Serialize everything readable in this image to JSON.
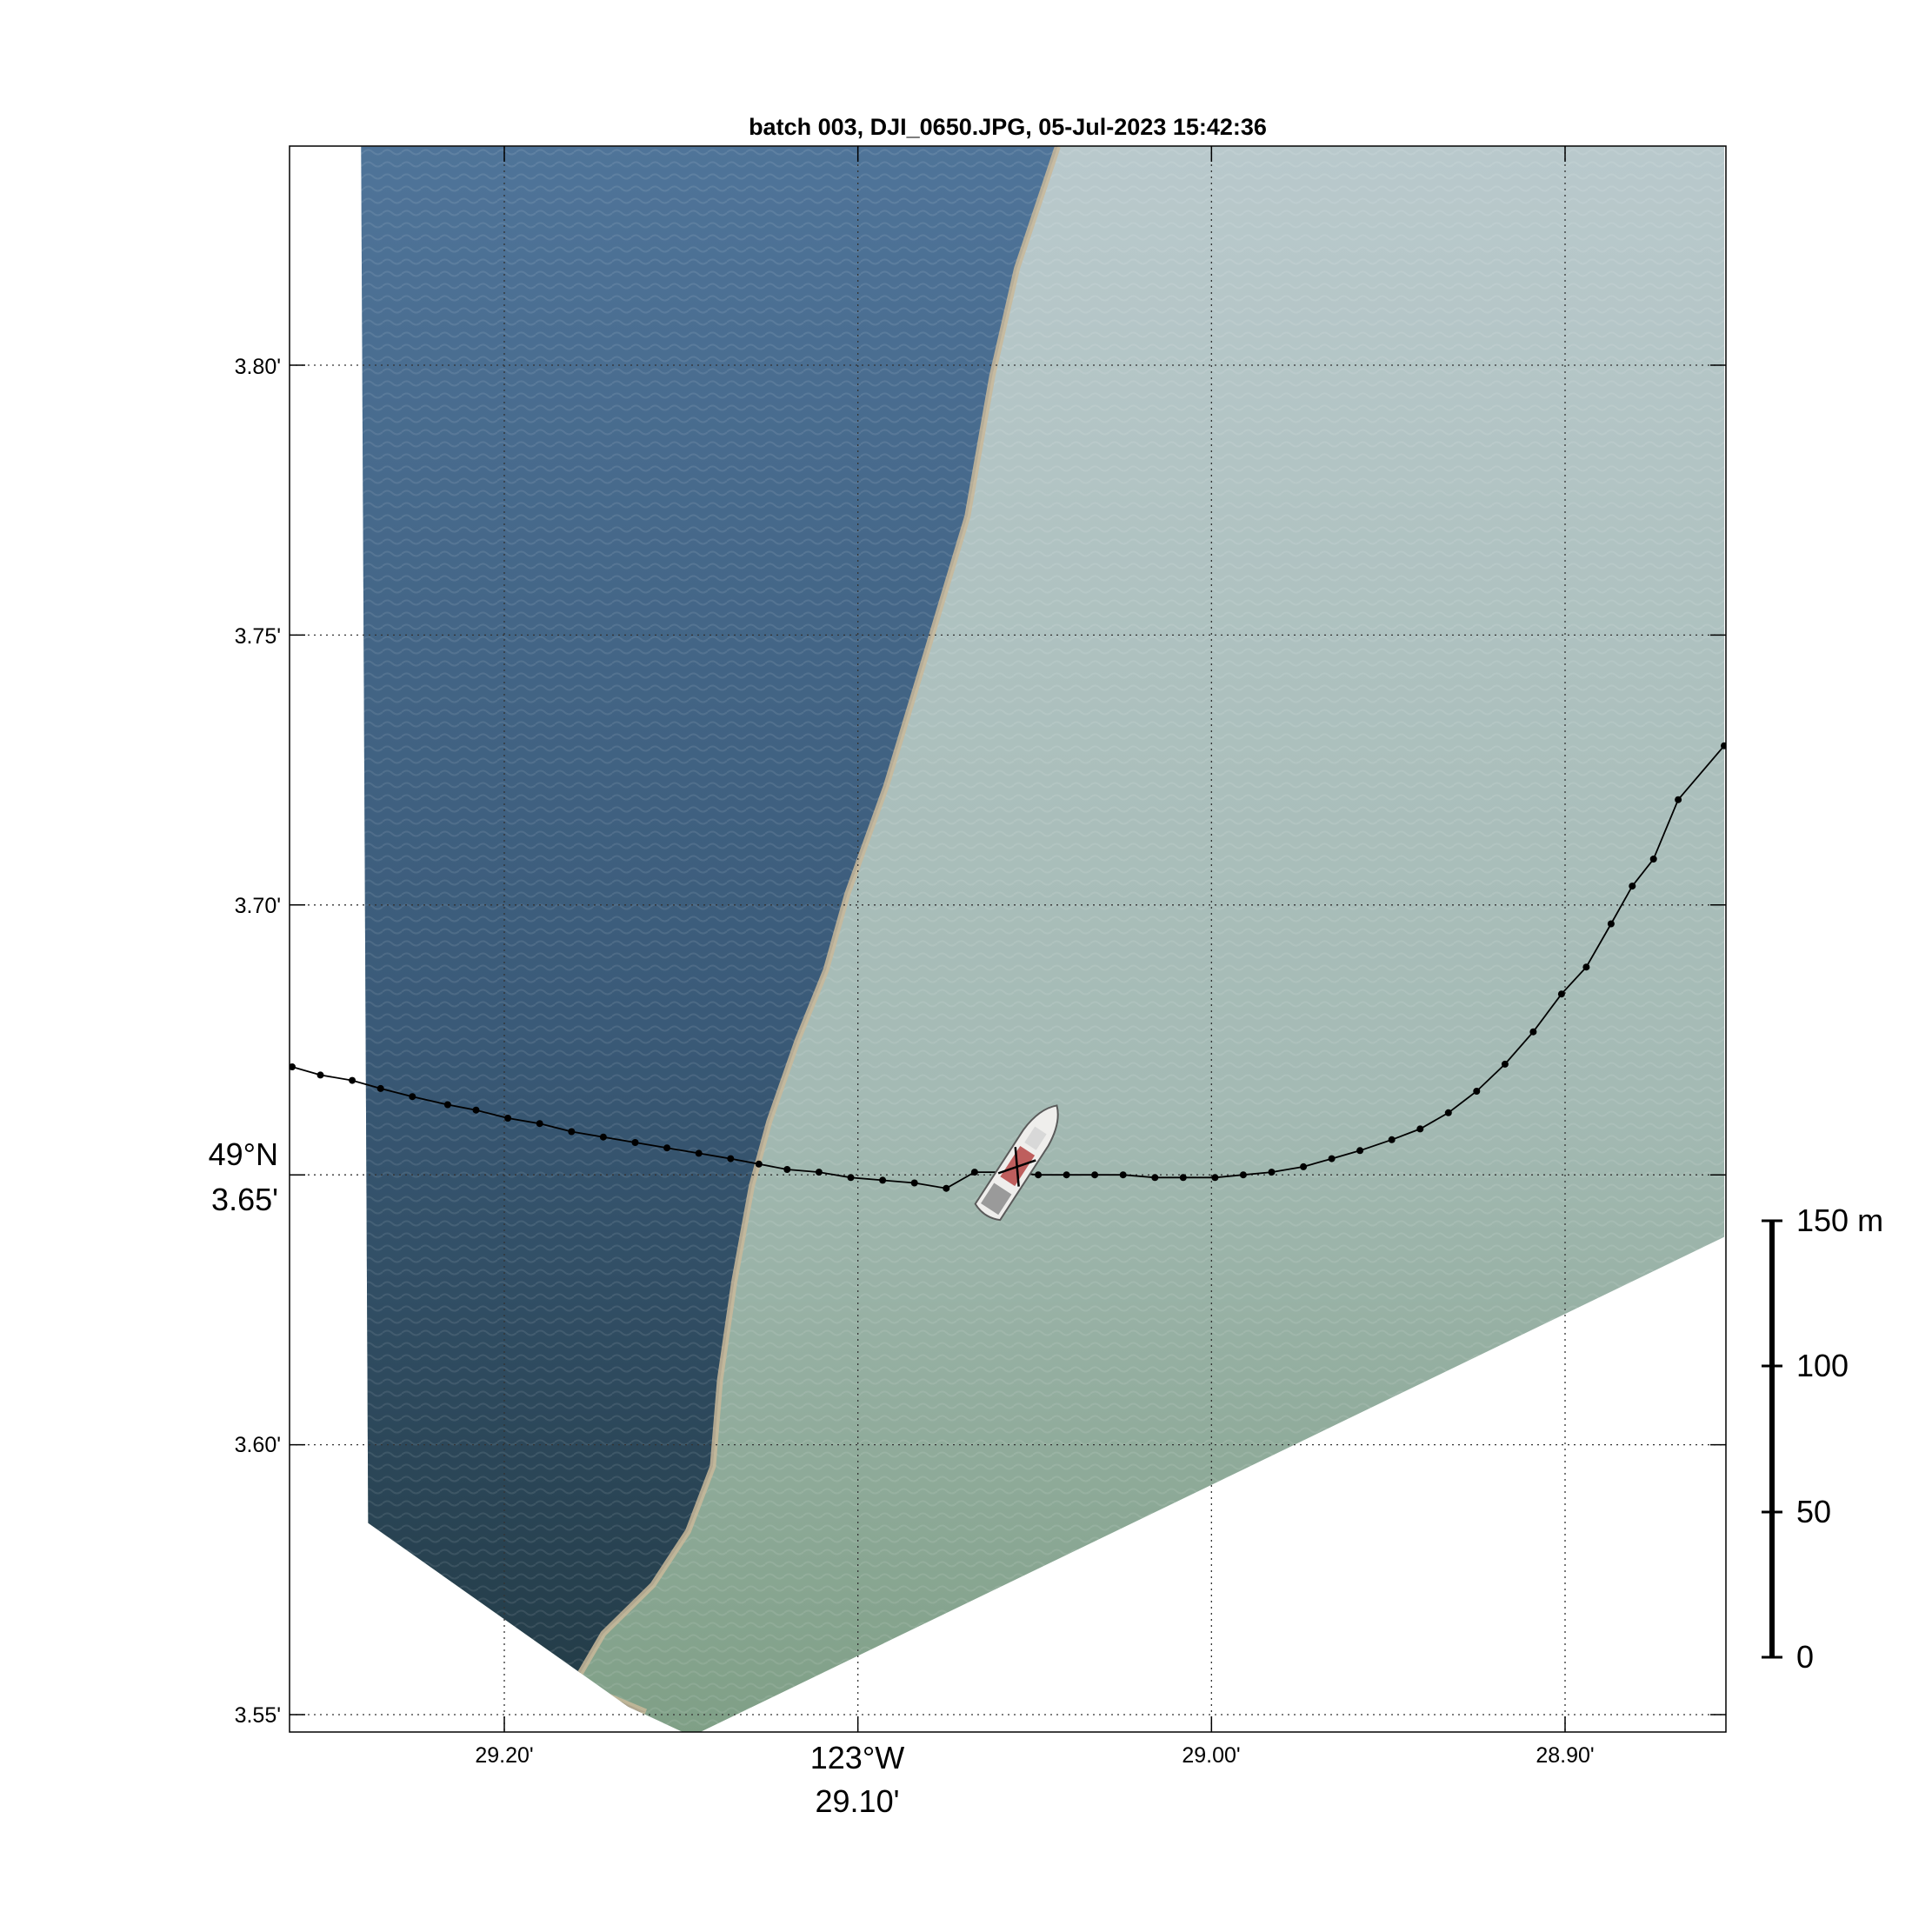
{
  "title": "batch 003, DJI_0650.JPG, 05-Jul-2023 15:42:36",
  "colors": {
    "deep_water_top": "#4f7499",
    "deep_water_bottom": "#223a44",
    "turbid_water_top": "#b9c9cc",
    "turbid_water_bottom": "#7f9f86",
    "foam_front": "#c9b89a",
    "track": "#000000",
    "ship_hull": "#efeeec",
    "ship_accent": "#b23a3a"
  },
  "map": {
    "lat_ticks": [
      {
        "value": 3.8,
        "label": "3.80'"
      },
      {
        "value": 3.75,
        "label": "3.75'"
      },
      {
        "value": 3.7,
        "label": "3.70'"
      },
      {
        "value": 3.65,
        "label_deg": "49°N",
        "label": "3.65'"
      },
      {
        "value": 3.6,
        "label": "3.60'"
      },
      {
        "value": 3.55,
        "label": "3.55'"
      }
    ],
    "lon_ticks": [
      {
        "value": 29.2,
        "label": "29.20'"
      },
      {
        "value": 29.1,
        "label_deg": "123°W",
        "label": "29.10'"
      },
      {
        "value": 29.0,
        "label": "29.00'"
      },
      {
        "value": 28.9,
        "label": "28.90'"
      }
    ],
    "lon_range": [
      29.26,
      28.855
    ],
    "lat_range": [
      3.546,
      3.8405
    ],
    "grid": "dotted",
    "image_footprint": [
      [
        29.2405,
        3.8405
      ],
      [
        28.855,
        3.8405
      ],
      [
        28.855,
        3.6385
      ],
      [
        29.147,
        3.546
      ],
      [
        29.165,
        3.5515
      ],
      [
        29.2385,
        3.5855
      ]
    ],
    "front_line": [
      [
        29.0435,
        3.8405
      ],
      [
        29.055,
        3.818
      ],
      [
        29.062,
        3.798
      ],
      [
        29.069,
        3.772
      ],
      [
        29.08,
        3.748
      ],
      [
        29.092,
        3.722
      ],
      [
        29.103,
        3.702
      ],
      [
        29.109,
        3.688
      ],
      [
        29.117,
        3.675
      ],
      [
        29.125,
        3.66
      ],
      [
        29.13,
        3.648
      ],
      [
        29.135,
        3.63
      ],
      [
        29.139,
        3.612
      ],
      [
        29.141,
        3.596
      ],
      [
        29.148,
        3.584
      ],
      [
        29.158,
        3.574
      ],
      [
        29.172,
        3.565
      ],
      [
        29.18,
        3.556
      ],
      [
        29.16,
        3.5505
      ]
    ],
    "ship_track": [
      [
        29.26,
        3.67
      ],
      [
        29.252,
        3.6685
      ],
      [
        29.243,
        3.6675
      ],
      [
        29.235,
        3.666
      ],
      [
        29.226,
        3.6645
      ],
      [
        29.216,
        3.663
      ],
      [
        29.208,
        3.662
      ],
      [
        29.199,
        3.6605
      ],
      [
        29.19,
        3.6595
      ],
      [
        29.181,
        3.658
      ],
      [
        29.172,
        3.657
      ],
      [
        29.163,
        3.656
      ],
      [
        29.154,
        3.655
      ],
      [
        29.145,
        3.654
      ],
      [
        29.136,
        3.653
      ],
      [
        29.128,
        3.652
      ],
      [
        29.12,
        3.651
      ],
      [
        29.111,
        3.6505
      ],
      [
        29.102,
        3.6495
      ],
      [
        29.093,
        3.649
      ],
      [
        29.084,
        3.6485
      ],
      [
        29.075,
        3.6475
      ],
      [
        29.067,
        3.6505
      ],
      [
        29.058,
        3.6505
      ],
      [
        29.049,
        3.65
      ],
      [
        29.041,
        3.65
      ],
      [
        29.033,
        3.65
      ],
      [
        29.025,
        3.65
      ],
      [
        29.016,
        3.6495
      ],
      [
        29.008,
        3.6495
      ],
      [
        28.999,
        3.6495
      ],
      [
        28.991,
        3.65
      ],
      [
        28.983,
        3.6505
      ],
      [
        28.974,
        3.6515
      ],
      [
        28.966,
        3.653
      ],
      [
        28.958,
        3.6545
      ],
      [
        28.949,
        3.6565
      ],
      [
        28.941,
        3.6585
      ],
      [
        28.933,
        3.6615
      ],
      [
        28.925,
        3.6655
      ],
      [
        28.917,
        3.6705
      ],
      [
        28.909,
        3.6765
      ],
      [
        28.901,
        3.6835
      ],
      [
        28.894,
        3.6885
      ],
      [
        28.887,
        3.6965
      ],
      [
        28.881,
        3.7035
      ],
      [
        28.875,
        3.7085
      ],
      [
        28.868,
        3.7195
      ],
      [
        28.855,
        3.7295
      ]
    ],
    "ship_position": [
      29.055,
      3.6515
    ],
    "ship_heading_deg": 57
  },
  "scale_bar": {
    "unit": "m",
    "max": 150,
    "ticks": [
      {
        "value": 150,
        "label": "150 m"
      },
      {
        "value": 100,
        "label": "100"
      },
      {
        "value": 50,
        "label": "50"
      },
      {
        "value": 0,
        "label": "0"
      }
    ]
  }
}
